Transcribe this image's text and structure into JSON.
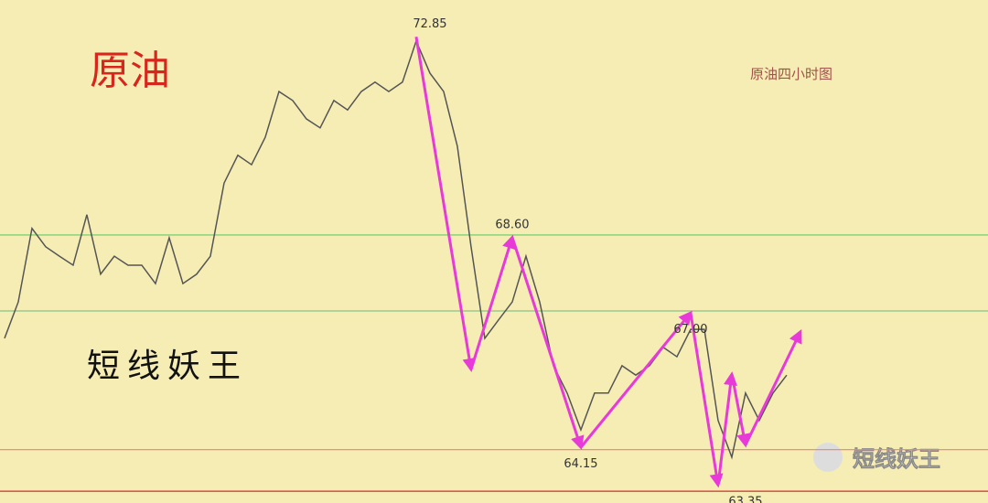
{
  "chart_data": {
    "type": "line",
    "title": "原油",
    "subtitle": "原油四小时图",
    "annotation_text": "短线妖王",
    "watermark": "短线妖王",
    "x": [
      0,
      1,
      2,
      3,
      4,
      5,
      6,
      7,
      8,
      9,
      10,
      11,
      12,
      13,
      14,
      15,
      16,
      17,
      18,
      19,
      20,
      21,
      22,
      23,
      24,
      25,
      26,
      27,
      28,
      29,
      30,
      31,
      32,
      33,
      34,
      35,
      36,
      37,
      38,
      39,
      40,
      41,
      42,
      43,
      44,
      45,
      46,
      47,
      48,
      49,
      50,
      51,
      52,
      53,
      54,
      55,
      56,
      57
    ],
    "xlim": [
      -0.33,
      71.67
    ],
    "ylim": [
      62.97,
      73.63
    ],
    "series": [
      {
        "color": "#555555",
        "values": [
          66.46,
          67.23,
          68.79,
          68.4,
          68.2,
          68.01,
          69.08,
          67.82,
          68.2,
          68.01,
          68.01,
          67.62,
          68.59,
          67.62,
          67.82,
          68.2,
          69.75,
          70.34,
          70.14,
          70.72,
          71.69,
          71.5,
          71.11,
          70.92,
          71.5,
          71.3,
          71.69,
          71.89,
          71.69,
          71.89,
          72.76,
          72.08,
          71.69,
          70.53,
          68.4,
          66.46,
          66.85,
          67.23,
          68.2,
          67.23,
          65.88,
          65.3,
          64.52,
          65.3,
          65.3,
          65.88,
          65.68,
          65.88,
          66.27,
          66.07,
          66.65,
          66.65,
          64.72,
          63.94,
          65.3,
          64.72,
          65.3,
          65.68
        ]
      }
    ],
    "trend": {
      "color": "#e83ad8",
      "x": [
        30,
        34,
        37,
        42,
        50,
        52,
        53,
        54,
        58
      ],
      "values": [
        72.85,
        65.8,
        68.6,
        64.15,
        67.0,
        63.35,
        65.7,
        64.2,
        66.6
      ]
    },
    "levels": [
      {
        "value": 68.65,
        "color": "#66cc66"
      },
      {
        "value": 67.04,
        "color": "#88c488"
      },
      {
        "value": 64.1,
        "color": "#ee8080"
      },
      {
        "value": 63.22,
        "color": "#cc3030"
      }
    ],
    "annotations": {
      "x": [
        31,
        37,
        50,
        42,
        54
      ],
      "values": [
        72.85,
        68.6,
        67.0,
        64.15,
        63.35
      ],
      "value_labels": [
        "72.85",
        "68.60",
        "67.00",
        "64.15",
        "63.35"
      ]
    }
  }
}
